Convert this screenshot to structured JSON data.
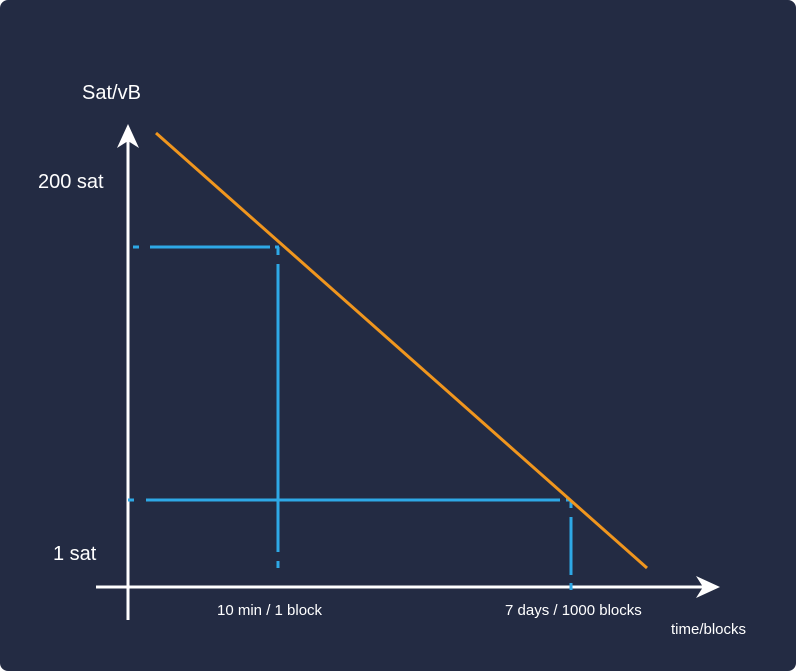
{
  "diagram": {
    "y_axis_label": "Sat/vB",
    "x_axis_label": "time/blocks",
    "y_ticks": {
      "high": "200 sat",
      "low": "1 sat"
    },
    "x_ticks": {
      "first": "10 min / 1 block",
      "second": "7 days / 1000 blocks"
    },
    "colors": {
      "background": "#232b43",
      "axes": "#ffffff",
      "fee_line": "#f0961e",
      "guides": "#2ea8e6",
      "text": "#ffffff"
    }
  }
}
